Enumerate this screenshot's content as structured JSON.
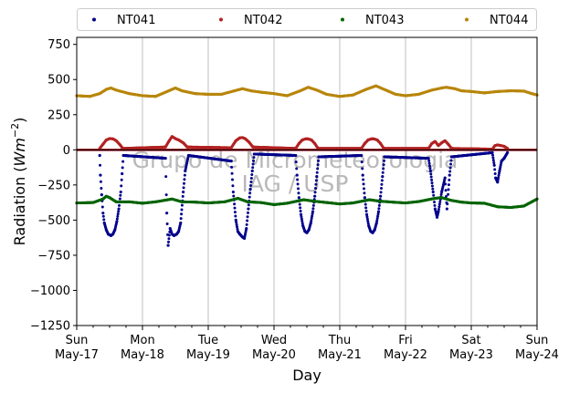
{
  "chart_data": {
    "type": "scatter",
    "xlabel": "Day",
    "ylabel_main": "Radiation (",
    "ylabel_math": "Wm",
    "ylabel_exp": "−2",
    "ylabel_end": ")",
    "ylim": [
      -1250,
      800
    ],
    "yticks": [
      750,
      500,
      250,
      0,
      -250,
      -500,
      -750,
      -1000,
      -1250
    ],
    "ytick_labels": [
      "750",
      "500",
      "250",
      "0",
      "−250",
      "−500",
      "−750",
      "−1000",
      "−1250"
    ],
    "xlim": [
      0,
      7
    ],
    "xticks": [
      0,
      1,
      2,
      3,
      4,
      5,
      6,
      7
    ],
    "xtick_labels": [
      [
        "Sun",
        "May-17"
      ],
      [
        "Mon",
        "May-18"
      ],
      [
        "Tue",
        "May-19"
      ],
      [
        "Wed",
        "May-20"
      ],
      [
        "Thu",
        "May-21"
      ],
      [
        "Fri",
        "May-22"
      ],
      [
        "Sat",
        "May-23"
      ],
      [
        "Sun",
        "May-24"
      ]
    ],
    "grid": "vertical",
    "legend_position": "top, outside",
    "watermark": [
      "Grupo de Micrometeorologia",
      "IAG / USP"
    ],
    "series": [
      {
        "name": "NT041",
        "color": "#00008b",
        "points": [
          [
            0.35,
            -40
          ],
          [
            0.36,
            -180
          ],
          [
            0.38,
            -320
          ],
          [
            0.4,
            -450
          ],
          [
            0.42,
            -520
          ],
          [
            0.45,
            -570
          ],
          [
            0.48,
            -600
          ],
          [
            0.52,
            -610
          ],
          [
            0.55,
            -600
          ],
          [
            0.58,
            -570
          ],
          [
            0.61,
            -510
          ],
          [
            0.64,
            -420
          ],
          [
            0.67,
            -300
          ],
          [
            0.69,
            -170
          ],
          [
            0.71,
            -40
          ],
          [
            1.35,
            -60
          ],
          [
            1.37,
            -450
          ],
          [
            1.39,
            -680
          ],
          [
            1.42,
            -560
          ],
          [
            1.45,
            -600
          ],
          [
            1.48,
            -610
          ],
          [
            1.52,
            -600
          ],
          [
            1.55,
            -580
          ],
          [
            1.58,
            -520
          ],
          [
            1.62,
            -300
          ],
          [
            1.65,
            -150
          ],
          [
            1.7,
            -40
          ],
          [
            2.35,
            -80
          ],
          [
            2.38,
            -300
          ],
          [
            2.42,
            -500
          ],
          [
            2.45,
            -580
          ],
          [
            2.48,
            -600
          ],
          [
            2.52,
            -620
          ],
          [
            2.55,
            -630
          ],
          [
            2.58,
            -560
          ],
          [
            2.61,
            -420
          ],
          [
            2.64,
            -280
          ],
          [
            2.67,
            -150
          ],
          [
            2.7,
            -30
          ],
          [
            3.33,
            -40
          ],
          [
            3.35,
            -180
          ],
          [
            3.38,
            -340
          ],
          [
            3.41,
            -460
          ],
          [
            3.44,
            -540
          ],
          [
            3.47,
            -580
          ],
          [
            3.5,
            -590
          ],
          [
            3.53,
            -570
          ],
          [
            3.56,
            -520
          ],
          [
            3.59,
            -440
          ],
          [
            3.62,
            -330
          ],
          [
            3.65,
            -190
          ],
          [
            3.68,
            -50
          ],
          [
            4.33,
            -40
          ],
          [
            4.35,
            -180
          ],
          [
            4.38,
            -340
          ],
          [
            4.41,
            -460
          ],
          [
            4.44,
            -540
          ],
          [
            4.47,
            -580
          ],
          [
            4.5,
            -590
          ],
          [
            4.53,
            -570
          ],
          [
            4.56,
            -520
          ],
          [
            4.59,
            -440
          ],
          [
            4.62,
            -330
          ],
          [
            4.65,
            -190
          ],
          [
            4.68,
            -50
          ],
          [
            5.35,
            -60
          ],
          [
            5.38,
            -150
          ],
          [
            5.42,
            -300
          ],
          [
            5.45,
            -420
          ],
          [
            5.48,
            -480
          ],
          [
            5.5,
            -440
          ],
          [
            5.55,
            -300
          ],
          [
            5.6,
            -200
          ],
          [
            5.63,
            -420
          ],
          [
            5.67,
            -180
          ],
          [
            5.7,
            -50
          ],
          [
            6.32,
            -20
          ],
          [
            6.35,
            -110
          ],
          [
            6.37,
            -200
          ],
          [
            6.4,
            -230
          ],
          [
            6.43,
            -150
          ],
          [
            6.46,
            -80
          ],
          [
            6.5,
            -60
          ],
          [
            6.55,
            -20
          ]
        ]
      },
      {
        "name": "NT042",
        "color": "#b22222",
        "points": [
          [
            0.35,
            10
          ],
          [
            0.4,
            40
          ],
          [
            0.45,
            70
          ],
          [
            0.5,
            80
          ],
          [
            0.55,
            78
          ],
          [
            0.6,
            65
          ],
          [
            0.66,
            35
          ],
          [
            0.7,
            10
          ],
          [
            1.35,
            20
          ],
          [
            1.4,
            60
          ],
          [
            1.45,
            95
          ],
          [
            1.5,
            80
          ],
          [
            1.55,
            70
          ],
          [
            1.62,
            50
          ],
          [
            1.68,
            20
          ],
          [
            2.35,
            15
          ],
          [
            2.42,
            65
          ],
          [
            2.48,
            85
          ],
          [
            2.52,
            87
          ],
          [
            2.56,
            80
          ],
          [
            2.62,
            55
          ],
          [
            2.68,
            20
          ],
          [
            3.33,
            10
          ],
          [
            3.38,
            45
          ],
          [
            3.43,
            70
          ],
          [
            3.48,
            78
          ],
          [
            3.52,
            78
          ],
          [
            3.57,
            70
          ],
          [
            3.62,
            45
          ],
          [
            3.67,
            10
          ],
          [
            4.33,
            10
          ],
          [
            4.38,
            45
          ],
          [
            4.43,
            70
          ],
          [
            4.48,
            78
          ],
          [
            4.52,
            78
          ],
          [
            4.57,
            70
          ],
          [
            4.62,
            45
          ],
          [
            4.67,
            10
          ],
          [
            5.35,
            10
          ],
          [
            5.4,
            45
          ],
          [
            5.45,
            60
          ],
          [
            5.5,
            30
          ],
          [
            5.55,
            50
          ],
          [
            5.6,
            65
          ],
          [
            5.65,
            40
          ],
          [
            5.7,
            10
          ],
          [
            6.32,
            5
          ],
          [
            6.36,
            30
          ],
          [
            6.4,
            35
          ],
          [
            6.45,
            30
          ],
          [
            6.5,
            25
          ],
          [
            6.55,
            10
          ]
        ]
      },
      {
        "name": "NT043",
        "color": "#006400",
        "points": [
          [
            0.0,
            -378
          ],
          [
            0.25,
            -375
          ],
          [
            0.4,
            -350
          ],
          [
            0.45,
            -330
          ],
          [
            0.5,
            -340
          ],
          [
            0.6,
            -370
          ],
          [
            0.8,
            -370
          ],
          [
            1.0,
            -380
          ],
          [
            1.2,
            -370
          ],
          [
            1.45,
            -350
          ],
          [
            1.6,
            -370
          ],
          [
            1.8,
            -372
          ],
          [
            2.0,
            -378
          ],
          [
            2.25,
            -370
          ],
          [
            2.45,
            -345
          ],
          [
            2.6,
            -370
          ],
          [
            2.8,
            -375
          ],
          [
            3.0,
            -390
          ],
          [
            3.2,
            -380
          ],
          [
            3.45,
            -355
          ],
          [
            3.6,
            -365
          ],
          [
            3.8,
            -375
          ],
          [
            4.0,
            -385
          ],
          [
            4.2,
            -378
          ],
          [
            4.45,
            -355
          ],
          [
            4.6,
            -365
          ],
          [
            4.8,
            -372
          ],
          [
            5.0,
            -378
          ],
          [
            5.2,
            -368
          ],
          [
            5.45,
            -345
          ],
          [
            5.55,
            -340
          ],
          [
            5.7,
            -360
          ],
          [
            5.85,
            -372
          ],
          [
            6.0,
            -378
          ],
          [
            6.2,
            -380
          ],
          [
            6.4,
            -405
          ],
          [
            6.6,
            -410
          ],
          [
            6.8,
            -400
          ],
          [
            6.92,
            -370
          ],
          [
            7.0,
            -350
          ]
        ]
      },
      {
        "name": "NT044",
        "color": "#b8860b",
        "points": [
          [
            0.0,
            385
          ],
          [
            0.2,
            380
          ],
          [
            0.35,
            400
          ],
          [
            0.45,
            430
          ],
          [
            0.52,
            440
          ],
          [
            0.6,
            425
          ],
          [
            0.8,
            400
          ],
          [
            1.0,
            385
          ],
          [
            1.2,
            380
          ],
          [
            1.4,
            420
          ],
          [
            1.5,
            440
          ],
          [
            1.6,
            420
          ],
          [
            1.8,
            400
          ],
          [
            2.0,
            395
          ],
          [
            2.2,
            395
          ],
          [
            2.4,
            420
          ],
          [
            2.52,
            435
          ],
          [
            2.65,
            420
          ],
          [
            2.8,
            410
          ],
          [
            3.0,
            400
          ],
          [
            3.2,
            385
          ],
          [
            3.4,
            420
          ],
          [
            3.52,
            445
          ],
          [
            3.65,
            425
          ],
          [
            3.8,
            395
          ],
          [
            4.0,
            380
          ],
          [
            4.2,
            390
          ],
          [
            4.4,
            430
          ],
          [
            4.55,
            455
          ],
          [
            4.7,
            425
          ],
          [
            4.85,
            395
          ],
          [
            5.0,
            385
          ],
          [
            5.2,
            395
          ],
          [
            5.4,
            425
          ],
          [
            5.55,
            440
          ],
          [
            5.62,
            445
          ],
          [
            5.75,
            435
          ],
          [
            5.85,
            420
          ],
          [
            6.0,
            415
          ],
          [
            6.2,
            405
          ],
          [
            6.4,
            415
          ],
          [
            6.6,
            420
          ],
          [
            6.8,
            418
          ],
          [
            6.92,
            400
          ],
          [
            7.0,
            390
          ]
        ]
      }
    ]
  }
}
